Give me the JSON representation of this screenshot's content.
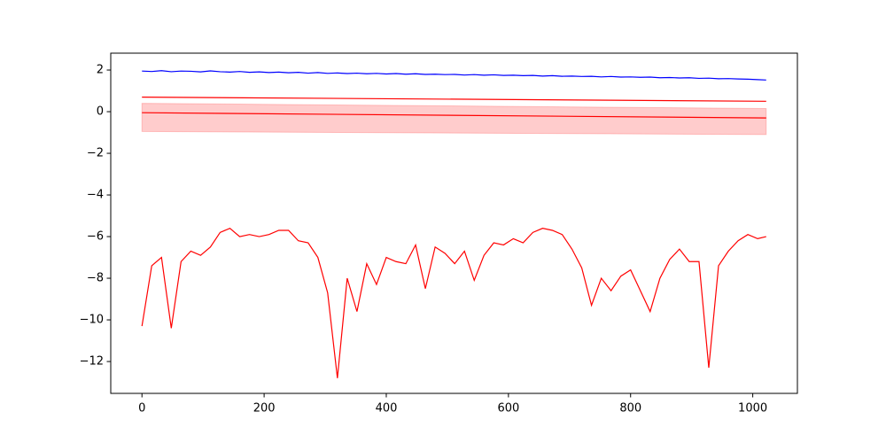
{
  "chart_data": {
    "type": "line",
    "x": [
      0,
      16,
      32,
      48,
      64,
      80,
      96,
      112,
      128,
      144,
      160,
      176,
      192,
      208,
      224,
      240,
      256,
      272,
      288,
      304,
      320,
      336,
      352,
      368,
      384,
      400,
      416,
      432,
      448,
      464,
      480,
      496,
      512,
      528,
      544,
      560,
      576,
      592,
      608,
      624,
      640,
      656,
      672,
      688,
      704,
      720,
      736,
      752,
      768,
      784,
      800,
      816,
      832,
      848,
      864,
      880,
      896,
      912,
      928,
      944,
      960,
      976,
      992,
      1008,
      1022
    ],
    "series": [
      {
        "color": "#0000ff",
        "values": [
          1.95,
          1.93,
          1.97,
          1.92,
          1.95,
          1.94,
          1.91,
          1.96,
          1.92,
          1.9,
          1.93,
          1.89,
          1.91,
          1.88,
          1.9,
          1.87,
          1.89,
          1.85,
          1.88,
          1.84,
          1.86,
          1.83,
          1.85,
          1.82,
          1.84,
          1.81,
          1.83,
          1.8,
          1.82,
          1.79,
          1.8,
          1.78,
          1.79,
          1.76,
          1.78,
          1.75,
          1.77,
          1.74,
          1.75,
          1.73,
          1.74,
          1.71,
          1.73,
          1.7,
          1.71,
          1.69,
          1.7,
          1.67,
          1.69,
          1.66,
          1.67,
          1.65,
          1.66,
          1.63,
          1.64,
          1.62,
          1.63,
          1.6,
          1.61,
          1.58,
          1.59,
          1.57,
          1.56,
          1.54,
          1.52
        ]
      },
      {
        "color": "#ff0000",
        "x": [
          0,
          1022
        ],
        "values": [
          0.7,
          0.5
        ]
      },
      {
        "color": "#ff0000",
        "x": [
          0,
          1022
        ],
        "values": [
          -0.05,
          -0.3
        ]
      },
      {
        "color": "#ff0000",
        "values": [
          -10.3,
          -7.4,
          -7.0,
          -10.4,
          -7.2,
          -6.7,
          -6.9,
          -6.5,
          -5.8,
          -5.6,
          -6.0,
          -5.9,
          -6.0,
          -5.9,
          -5.7,
          -5.7,
          -6.2,
          -6.3,
          -7.0,
          -8.7,
          -12.8,
          -8.0,
          -9.6,
          -7.3,
          -8.3,
          -7.0,
          -7.2,
          -7.3,
          -6.4,
          -8.5,
          -6.5,
          -6.8,
          -7.3,
          -6.7,
          -8.1,
          -6.9,
          -6.3,
          -6.4,
          -6.1,
          -6.3,
          -5.8,
          -5.6,
          -5.7,
          -5.9,
          -6.6,
          -7.5,
          -9.3,
          -8.0,
          -8.6,
          -7.9,
          -7.6,
          -8.6,
          -9.6,
          -8.0,
          -7.1,
          -6.6,
          -7.2,
          -7.2,
          -12.3,
          -7.4,
          -6.7,
          -6.2,
          -5.9,
          -6.1,
          -6.0
        ]
      }
    ],
    "bands": [
      {
        "color": "#ff0000",
        "alpha": 0.2,
        "x": [
          0,
          1022
        ],
        "upper": [
          0.4,
          0.15
        ],
        "lower": [
          -0.95,
          -1.1
        ]
      }
    ],
    "xlim": [
      -51.1,
      1073.1
    ],
    "xticks": [
      0,
      200,
      400,
      600,
      800,
      1000
    ],
    "ylim": [
      -13.53,
      2.81
    ],
    "yticks": [
      {
        "value": -12,
        "label": "−12"
      },
      {
        "value": -10,
        "label": "−10"
      },
      {
        "value": -8,
        "label": "−8"
      },
      {
        "value": -6,
        "label": "−6"
      },
      {
        "value": -4,
        "label": "−4"
      },
      {
        "value": -2,
        "label": "−2"
      },
      0,
      2
    ],
    "grid": false
  }
}
